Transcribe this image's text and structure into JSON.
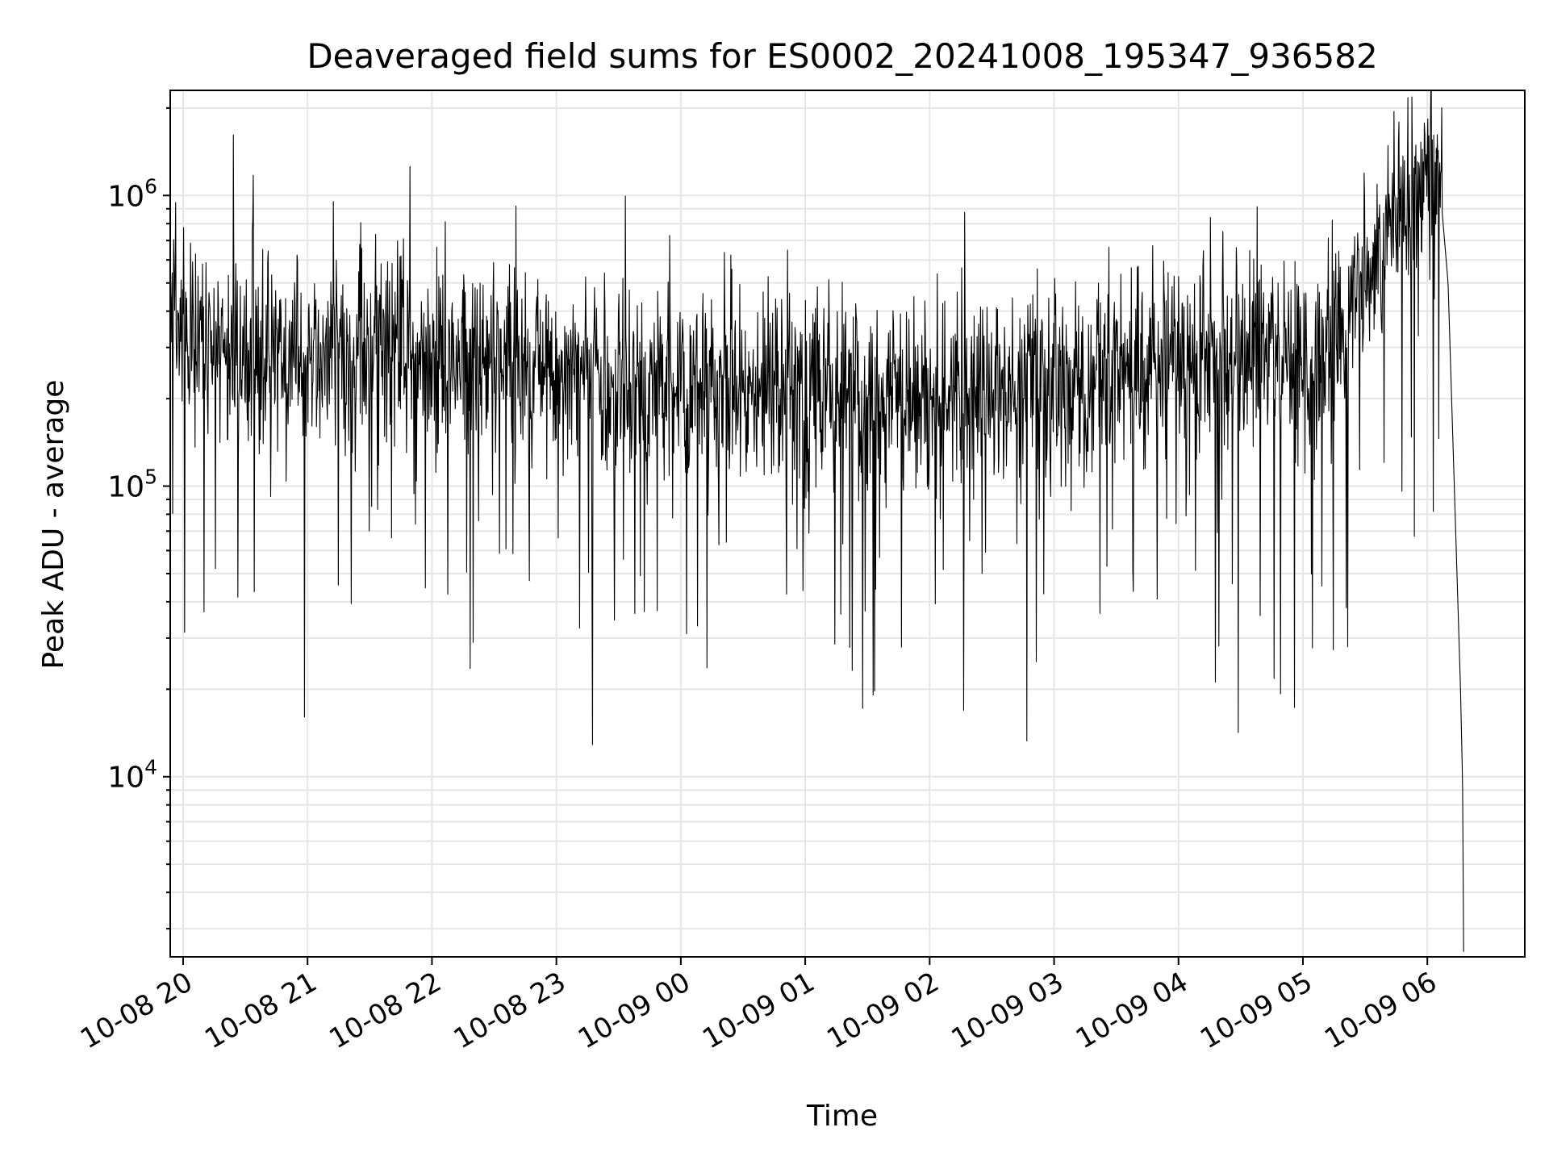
{
  "chart_data": {
    "type": "line",
    "title": "Deaveraged field sums for ES0002_20241008_195347_936582",
    "xlabel": "Time",
    "ylabel": "Peak ADU - average",
    "yscale": "log",
    "ylim": [
      2400,
      2300000
    ],
    "xlim": [
      "2024-10-08T19:53:47",
      "2024-10-09T06:47:00"
    ],
    "grid": true,
    "line_color": "#000000",
    "grid_color": "#e6e6e6",
    "x_ticks": [
      {
        "t": "2024-10-08T20:00:00",
        "label": "10-08 20"
      },
      {
        "t": "2024-10-08T21:00:00",
        "label": "10-08 21"
      },
      {
        "t": "2024-10-08T22:00:00",
        "label": "10-08 22"
      },
      {
        "t": "2024-10-08T23:00:00",
        "label": "10-08 23"
      },
      {
        "t": "2024-10-09T00:00:00",
        "label": "10-09 00"
      },
      {
        "t": "2024-10-09T01:00:00",
        "label": "10-09 01"
      },
      {
        "t": "2024-10-09T02:00:00",
        "label": "10-09 02"
      },
      {
        "t": "2024-10-09T03:00:00",
        "label": "10-09 03"
      },
      {
        "t": "2024-10-09T04:00:00",
        "label": "10-09 04"
      },
      {
        "t": "2024-10-09T05:00:00",
        "label": "10-09 05"
      },
      {
        "t": "2024-10-09T06:00:00",
        "label": "10-09 06"
      }
    ],
    "y_ticks": [
      {
        "value": 10000,
        "base": "10",
        "exp": "4"
      },
      {
        "value": 100000,
        "base": "10",
        "exp": "5"
      },
      {
        "value": 1000000,
        "base": "10",
        "exp": "6"
      }
    ],
    "series": [
      {
        "points": [
          {
            "t": "2024-10-08T19:54:00",
            "y": 380000
          },
          {
            "t": "2024-10-08T20:00:00",
            "y": 330000
          },
          {
            "t": "2024-10-08T20:15:00",
            "y": 320000
          },
          {
            "t": "2024-10-08T20:30:00",
            "y": 300000
          },
          {
            "t": "2024-10-08T20:45:00",
            "y": 290000
          },
          {
            "t": "2024-10-08T21:00:00",
            "y": 280000
          },
          {
            "t": "2024-10-08T21:30:00",
            "y": 290000
          },
          {
            "t": "2024-10-08T22:00:00",
            "y": 270000
          },
          {
            "t": "2024-10-08T22:30:00",
            "y": 285000
          },
          {
            "t": "2024-10-08T23:00:00",
            "y": 250000
          },
          {
            "t": "2024-10-08T23:30:00",
            "y": 235000
          },
          {
            "t": "2024-10-09T00:00:00",
            "y": 220000
          },
          {
            "t": "2024-10-09T00:30:00",
            "y": 215000
          },
          {
            "t": "2024-10-09T01:00:00",
            "y": 210000
          },
          {
            "t": "2024-10-09T01:30:00",
            "y": 205000
          },
          {
            "t": "2024-10-09T02:00:00",
            "y": 200000
          },
          {
            "t": "2024-10-09T02:30:00",
            "y": 210000
          },
          {
            "t": "2024-10-09T03:00:00",
            "y": 225000
          },
          {
            "t": "2024-10-09T03:30:00",
            "y": 240000
          },
          {
            "t": "2024-10-09T04:00:00",
            "y": 255000
          },
          {
            "t": "2024-10-09T04:30:00",
            "y": 265000
          },
          {
            "t": "2024-10-09T05:00:00",
            "y": 280000
          },
          {
            "t": "2024-10-09T05:15:00",
            "y": 310000
          },
          {
            "t": "2024-10-09T05:30:00",
            "y": 500000
          },
          {
            "t": "2024-10-09T05:45:00",
            "y": 900000
          },
          {
            "t": "2024-10-09T06:02:00",
            "y": 1300000
          },
          {
            "t": "2024-10-09T06:06:00",
            "y": 1100000
          },
          {
            "t": "2024-10-09T06:10:00",
            "y": 500000
          },
          {
            "t": "2024-10-09T06:16:00",
            "y": 20000
          },
          {
            "t": "2024-10-09T06:17:00",
            "y": 9500
          },
          {
            "t": "2024-10-09T06:17:30",
            "y": 2500
          }
        ],
        "noise": {
          "seed": 20241008,
          "samples": 2600,
          "sigma_log10": 0.17,
          "dip_probability": 0.055,
          "dip_log10_max": 1.1,
          "spike_probability": 0.03,
          "spike_log10_max": 0.45
        }
      }
    ]
  }
}
